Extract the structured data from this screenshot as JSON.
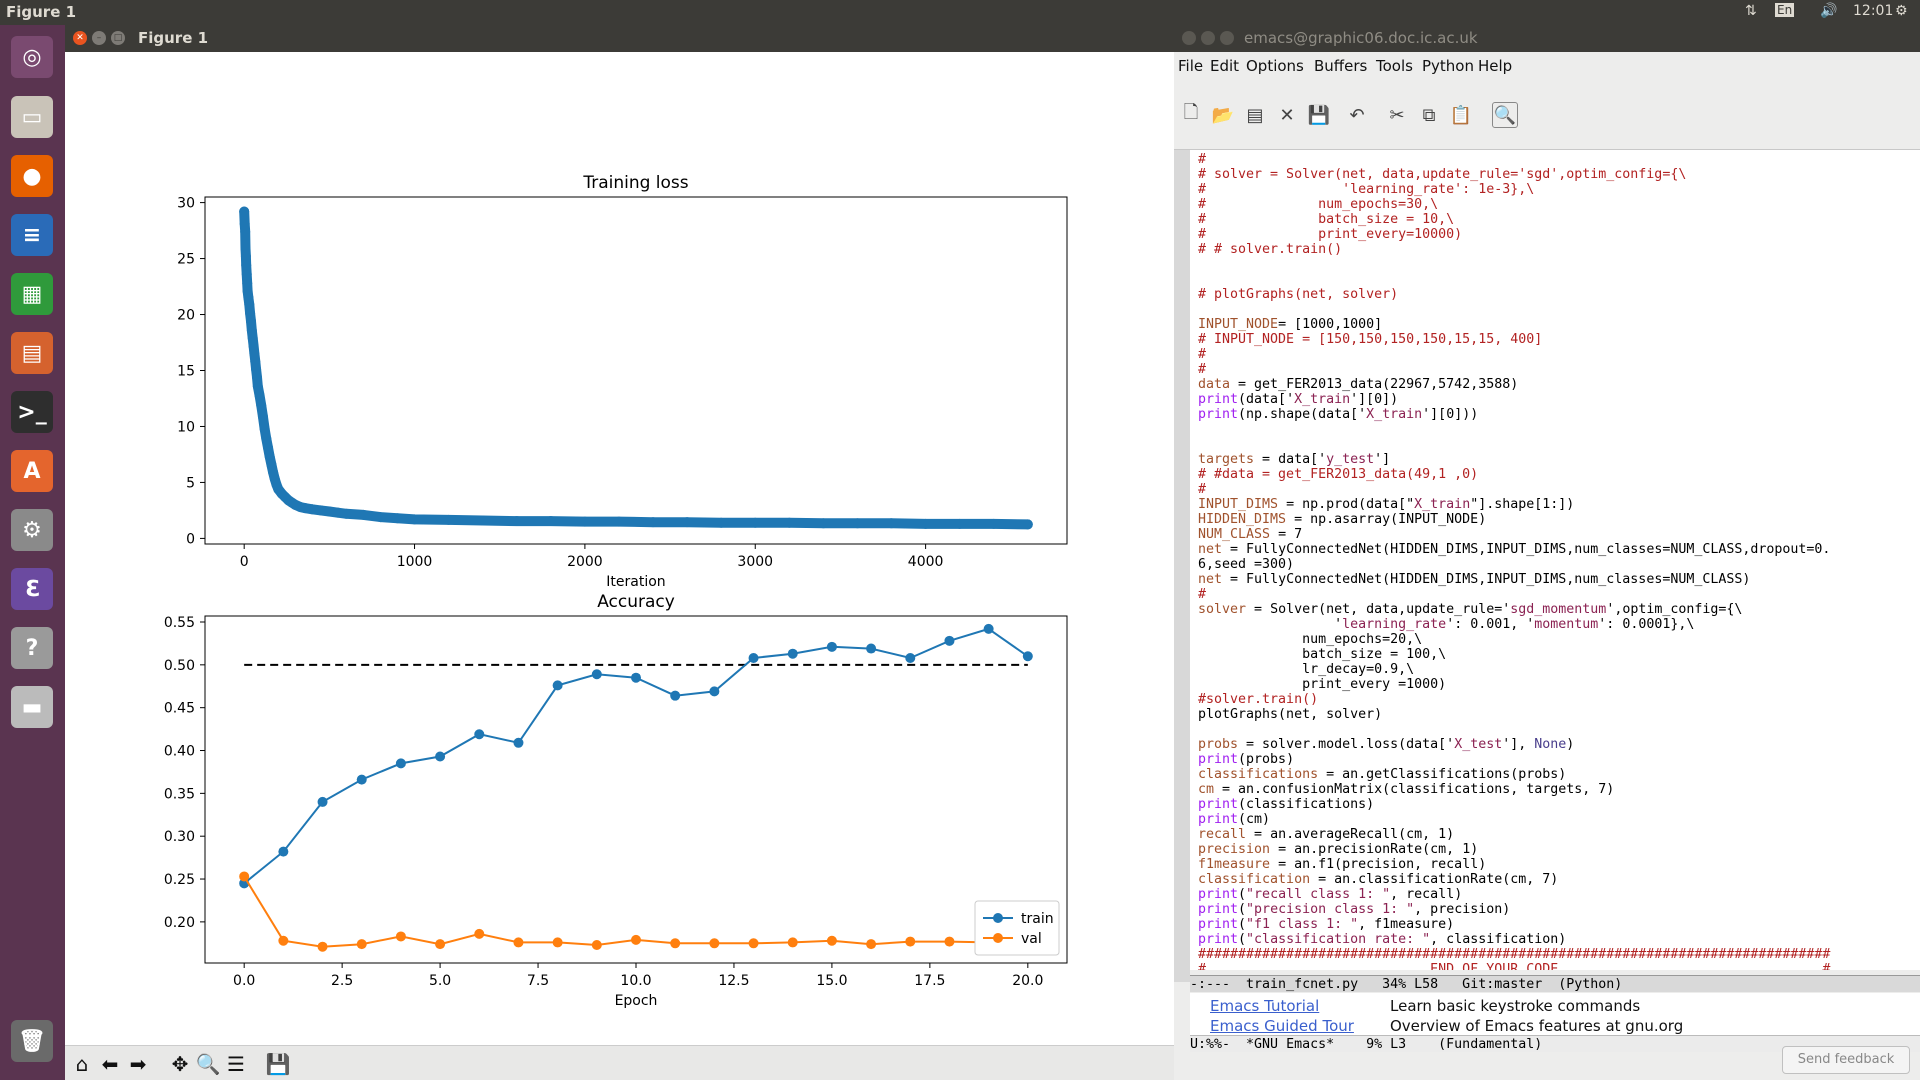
{
  "topbar": {
    "app_name": "Figure 1",
    "lang": "En",
    "time": "12:01"
  },
  "launcher": {
    "items": [
      {
        "name": "ubuntu-dash-icon",
        "color": "#7a4a70",
        "glyph": "◎"
      },
      {
        "name": "files-icon",
        "color": "#c9c3b8",
        "glyph": "▭"
      },
      {
        "name": "firefox-icon",
        "color": "#e66000",
        "glyph": "●"
      },
      {
        "name": "writer-icon",
        "color": "#2a6bb8",
        "glyph": "≡"
      },
      {
        "name": "calc-icon",
        "color": "#2f9a3b",
        "glyph": "▦"
      },
      {
        "name": "impress-icon",
        "color": "#d5622e",
        "glyph": "▤"
      },
      {
        "name": "terminal-icon",
        "color": "#2e2e2e",
        "glyph": ">_"
      },
      {
        "name": "software-center-icon",
        "color": "#e4652d",
        "glyph": "A"
      },
      {
        "name": "settings-icon",
        "color": "#8a8a8a",
        "glyph": "⚙"
      },
      {
        "name": "emacs-icon",
        "color": "#6b4aa0",
        "glyph": "ℇ"
      },
      {
        "name": "help-icon",
        "color": "#9a9a9a",
        "glyph": "?"
      },
      {
        "name": "drive-icon",
        "color": "#bbbbbb",
        "glyph": "▬"
      },
      {
        "name": "trash-icon",
        "color": "#6a6a6a",
        "glyph": "🗑"
      }
    ]
  },
  "figure": {
    "window_title": "Figure 1",
    "nav_icons": [
      "home-icon",
      "back-icon",
      "forward-icon",
      "pan-icon",
      "zoom-icon",
      "configure-icon",
      "save-icon"
    ]
  },
  "chart_data": [
    {
      "type": "scatter",
      "title": "Training loss",
      "xlabel": "Iteration",
      "ylabel": "",
      "xlim": [
        -230,
        4830
      ],
      "ylim": [
        -0.5,
        30.5
      ],
      "xticks": [
        0,
        1000,
        2000,
        3000,
        4000
      ],
      "yticks": [
        0,
        5,
        10,
        15,
        20,
        25,
        30
      ],
      "color": "#1f77b4",
      "points": [
        [
          0,
          29.2
        ],
        [
          3,
          28.1
        ],
        [
          6,
          27.4
        ],
        [
          8,
          25.9
        ],
        [
          10,
          25.2
        ],
        [
          12,
          24.4
        ],
        [
          15,
          23.6
        ],
        [
          18,
          22.8
        ],
        [
          20,
          22.1
        ],
        [
          25,
          21.5
        ],
        [
          30,
          20.9
        ],
        [
          35,
          20.1
        ],
        [
          40,
          19.4
        ],
        [
          45,
          18.6
        ],
        [
          50,
          17.9
        ],
        [
          55,
          17.2
        ],
        [
          60,
          16.5
        ],
        [
          65,
          15.8
        ],
        [
          70,
          15.1
        ],
        [
          75,
          14.4
        ],
        [
          80,
          13.6
        ],
        [
          90,
          12.8
        ],
        [
          100,
          11.9
        ],
        [
          110,
          10.9
        ],
        [
          120,
          9.8
        ],
        [
          130,
          8.9
        ],
        [
          140,
          8.1
        ],
        [
          150,
          7.3
        ],
        [
          160,
          6.6
        ],
        [
          170,
          5.9
        ],
        [
          180,
          5.3
        ],
        [
          190,
          4.8
        ],
        [
          200,
          4.4
        ],
        [
          220,
          4.0
        ],
        [
          240,
          3.7
        ],
        [
          260,
          3.4
        ],
        [
          280,
          3.2
        ],
        [
          300,
          3.0
        ],
        [
          330,
          2.8
        ],
        [
          360,
          2.7
        ],
        [
          400,
          2.6
        ],
        [
          450,
          2.5
        ],
        [
          500,
          2.4
        ],
        [
          550,
          2.3
        ],
        [
          600,
          2.2
        ],
        [
          700,
          2.1
        ],
        [
          800,
          1.9
        ],
        [
          900,
          1.8
        ],
        [
          1000,
          1.7
        ],
        [
          1200,
          1.65
        ],
        [
          1400,
          1.6
        ],
        [
          1600,
          1.55
        ],
        [
          1800,
          1.55
        ],
        [
          2000,
          1.5
        ],
        [
          2200,
          1.5
        ],
        [
          2400,
          1.45
        ],
        [
          2600,
          1.45
        ],
        [
          2800,
          1.4
        ],
        [
          3000,
          1.4
        ],
        [
          3200,
          1.4
        ],
        [
          3400,
          1.35
        ],
        [
          3600,
          1.35
        ],
        [
          3800,
          1.35
        ],
        [
          4000,
          1.3
        ],
        [
          4200,
          1.3
        ],
        [
          4400,
          1.3
        ],
        [
          4600,
          1.25
        ]
      ]
    },
    {
      "type": "line",
      "title": "Accuracy",
      "xlabel": "Epoch",
      "ylabel": "",
      "xlim": [
        -1,
        21
      ],
      "ylim": [
        0.152,
        0.557
      ],
      "xticks": [
        0.0,
        2.5,
        5.0,
        7.5,
        10.0,
        12.5,
        15.0,
        17.5,
        20.0
      ],
      "yticks": [
        0.2,
        0.25,
        0.3,
        0.35,
        0.4,
        0.45,
        0.5,
        0.55
      ],
      "reference_line": 0.5,
      "legend_position": "lower-right",
      "x": [
        0,
        1,
        2,
        3,
        4,
        5,
        6,
        7,
        8,
        9,
        10,
        11,
        12,
        13,
        14,
        15,
        16,
        17,
        18,
        19,
        20
      ],
      "series": [
        {
          "name": "train",
          "color": "#1f77b4",
          "values": [
            0.245,
            0.282,
            0.34,
            0.366,
            0.385,
            0.393,
            0.419,
            0.409,
            0.476,
            0.489,
            0.485,
            0.464,
            0.469,
            0.508,
            0.513,
            0.521,
            0.519,
            0.508,
            0.528,
            0.542,
            0.51
          ]
        },
        {
          "name": "val",
          "color": "#ff7f0e",
          "values": [
            0.253,
            0.178,
            0.171,
            0.174,
            0.183,
            0.174,
            0.186,
            0.176,
            0.176,
            0.173,
            0.179,
            0.175,
            0.175,
            0.175,
            0.176,
            0.178,
            0.174,
            0.177,
            0.177,
            0.176,
            0.176
          ]
        }
      ]
    }
  ],
  "emacs": {
    "window_title": "emacs@graphic06.doc.ic.ac.uk",
    "menu": [
      "File",
      "Edit",
      "Options",
      "Buffers",
      "Tools",
      "Python",
      "Help"
    ],
    "toolbar_icons": [
      "new-file-icon",
      "open-folder-icon",
      "save-file-icon",
      "close-buffer-icon",
      "save-disabled-icon",
      "undo-icon",
      "cut-icon",
      "copy-icon",
      "paste-icon",
      "search-icon"
    ],
    "code_lines": [
      {
        "cls": "red",
        "text": "#"
      },
      {
        "cls": "red",
        "text": "# solver = Solver(net, data,update_rule='sgd',optim_config={\\"
      },
      {
        "cls": "red",
        "text": "#                 'learning_rate': 1e-3},\\"
      },
      {
        "cls": "red",
        "text": "#              num_epochs=30,\\"
      },
      {
        "cls": "red",
        "text": "#              batch_size = 10,\\"
      },
      {
        "cls": "red",
        "text": "#              print_every=10000)"
      },
      {
        "cls": "red",
        "text": "# # solver.train()"
      },
      {
        "cls": "",
        "text": ""
      },
      {
        "cls": "",
        "text": ""
      },
      {
        "cls": "red",
        "text": "# plotGraphs(net, solver)"
      },
      {
        "cls": "",
        "text": ""
      },
      {
        "cls": "mix",
        "parts": [
          [
            "vn",
            "INPUT_NODE"
          ],
          [
            "",
            "= [1000,1000]"
          ]
        ]
      },
      {
        "cls": "red",
        "text": "# INPUT_NODE = [150,150,150,150,15,15, 400]"
      },
      {
        "cls": "red",
        "text": "#"
      },
      {
        "cls": "red",
        "text": "#"
      },
      {
        "cls": "mix",
        "parts": [
          [
            "vn",
            "data"
          ],
          [
            "",
            " = get_FER2013_data(22967,5742,3588)"
          ]
        ]
      },
      {
        "cls": "mix",
        "parts": [
          [
            "pur",
            "print"
          ],
          [
            "",
            "(data['"
          ],
          [
            "str",
            "X_train"
          ],
          [
            "",
            "'][0])"
          ]
        ]
      },
      {
        "cls": "mix",
        "parts": [
          [
            "pur",
            "print"
          ],
          [
            "",
            "(np.shape(data['"
          ],
          [
            "str",
            "X_train"
          ],
          [
            "",
            "'][0]))"
          ]
        ]
      },
      {
        "cls": "",
        "text": ""
      },
      {
        "cls": "",
        "text": ""
      },
      {
        "cls": "mix",
        "parts": [
          [
            "vn",
            "targets"
          ],
          [
            "",
            " = data['"
          ],
          [
            "str",
            "y_test"
          ],
          [
            "",
            "']"
          ]
        ]
      },
      {
        "cls": "red",
        "text": "# #data = get_FER2013_data(49,1 ,0)"
      },
      {
        "cls": "red",
        "text": "#"
      },
      {
        "cls": "mix",
        "parts": [
          [
            "vn",
            "INPUT_DIMS"
          ],
          [
            "",
            " = np.prod(data[\""
          ],
          [
            "str",
            "X_train"
          ],
          [
            "",
            "\"].shape[1:])"
          ]
        ]
      },
      {
        "cls": "mix",
        "parts": [
          [
            "vn",
            "HIDDEN_DIMS"
          ],
          [
            "",
            " = np.asarray(INPUT_NODE)"
          ]
        ]
      },
      {
        "cls": "mix",
        "parts": [
          [
            "vn",
            "NUM_CLASS"
          ],
          [
            "",
            " = 7"
          ]
        ]
      },
      {
        "cls": "mix",
        "parts": [
          [
            "vn",
            "net"
          ],
          [
            "",
            " = FullyConnectedNet(HIDDEN_DIMS,INPUT_DIMS,num_classes=NUM_CLASS,dropout=0."
          ]
        ]
      },
      {
        "cls": "",
        "text": "6,seed =300)"
      },
      {
        "cls": "mix",
        "parts": [
          [
            "vn",
            "net"
          ],
          [
            "",
            " = FullyConnectedNet(HIDDEN_DIMS,INPUT_DIMS,num_classes=NUM_CLASS)"
          ]
        ]
      },
      {
        "cls": "red",
        "text": "#"
      },
      {
        "cls": "mix",
        "parts": [
          [
            "vn",
            "solver"
          ],
          [
            "",
            " = Solver(net, data,update_rule='"
          ],
          [
            "str",
            "sgd_momentum"
          ],
          [
            "",
            "',optim_config={\\"
          ]
        ]
      },
      {
        "cls": "mix",
        "parts": [
          [
            "",
            "                 '"
          ],
          [
            "str",
            "learning_rate"
          ],
          [
            "",
            "': 0.001, '"
          ],
          [
            "str",
            "momentum"
          ],
          [
            "",
            "': 0.0001},\\"
          ]
        ]
      },
      {
        "cls": "",
        "text": "             num_epochs=20,\\"
      },
      {
        "cls": "",
        "text": "             batch_size = 100,\\"
      },
      {
        "cls": "",
        "text": "             lr_decay=0.9,\\"
      },
      {
        "cls": "",
        "text": "             print_every =1000)"
      },
      {
        "cls": "red",
        "text": "#solver.train()"
      },
      {
        "cls": "",
        "text": "plotGraphs(net, solver)"
      },
      {
        "cls": "",
        "text": ""
      },
      {
        "cls": "mix",
        "parts": [
          [
            "vn",
            "probs"
          ],
          [
            "",
            " = solver.model.loss(data['"
          ],
          [
            "str",
            "X_test"
          ],
          [
            "",
            "'], "
          ],
          [
            "bi",
            "None"
          ],
          [
            "",
            ")"
          ]
        ]
      },
      {
        "cls": "mix",
        "parts": [
          [
            "pur",
            "print"
          ],
          [
            "",
            "(probs)"
          ]
        ]
      },
      {
        "cls": "mix",
        "parts": [
          [
            "vn",
            "classifications"
          ],
          [
            "",
            " = an.getClassifications(probs)"
          ]
        ]
      },
      {
        "cls": "mix",
        "parts": [
          [
            "vn",
            "cm"
          ],
          [
            "",
            " = an.confusionMatrix(classifications, targets, 7)"
          ]
        ]
      },
      {
        "cls": "mix",
        "parts": [
          [
            "pur",
            "print"
          ],
          [
            "",
            "(classifications)"
          ]
        ]
      },
      {
        "cls": "mix",
        "parts": [
          [
            "pur",
            "print"
          ],
          [
            "",
            "(cm)"
          ]
        ]
      },
      {
        "cls": "mix",
        "parts": [
          [
            "vn",
            "recall"
          ],
          [
            "",
            " = an.averageRecall(cm, 1)"
          ]
        ]
      },
      {
        "cls": "mix",
        "parts": [
          [
            "vn",
            "precision"
          ],
          [
            "",
            " = an.precisionRate(cm, 1)"
          ]
        ]
      },
      {
        "cls": "mix",
        "parts": [
          [
            "vn",
            "f1measure"
          ],
          [
            "",
            " = an.f1(precision, recall)"
          ]
        ]
      },
      {
        "cls": "mix",
        "parts": [
          [
            "vn",
            "classification"
          ],
          [
            "",
            " = an.classificationRate(cm, 7)"
          ]
        ]
      },
      {
        "cls": "mix",
        "parts": [
          [
            "pur",
            "print"
          ],
          [
            "",
            "("
          ],
          [
            "str",
            "\"recall class 1: \""
          ],
          [
            "",
            ", recall)"
          ]
        ]
      },
      {
        "cls": "mix",
        "parts": [
          [
            "pur",
            "print"
          ],
          [
            "",
            "("
          ],
          [
            "str",
            "\"precision class 1: \""
          ],
          [
            "",
            ", precision)"
          ]
        ]
      },
      {
        "cls": "mix",
        "parts": [
          [
            "pur",
            "print"
          ],
          [
            "",
            "("
          ],
          [
            "str",
            "\"f1 class 1: \""
          ],
          [
            "",
            ", f1measure)"
          ]
        ]
      },
      {
        "cls": "mix",
        "parts": [
          [
            "pur",
            "print"
          ],
          [
            "",
            "("
          ],
          [
            "str",
            "\"classification rate: \""
          ],
          [
            "",
            ", classification)"
          ]
        ]
      },
      {
        "cls": "red",
        "text": "###############################################################################"
      },
      {
        "cls": "red",
        "text": "#                            END OF YOUR CODE                                 #"
      }
    ],
    "modeline_top": "-:---  train_fcnet.py   34% L58   Git:master  (Python)",
    "lower_link1": "Emacs Tutorial",
    "lower_desc1": "Learn basic keystroke commands",
    "lower_link2": "Emacs Guided Tour",
    "lower_desc2": "Overview of Emacs features at gnu.org",
    "modeline_bottom": "U:%%-  *GNU Emacs*    9% L3    (Fundamental)"
  },
  "send_feedback": "Send feedback"
}
